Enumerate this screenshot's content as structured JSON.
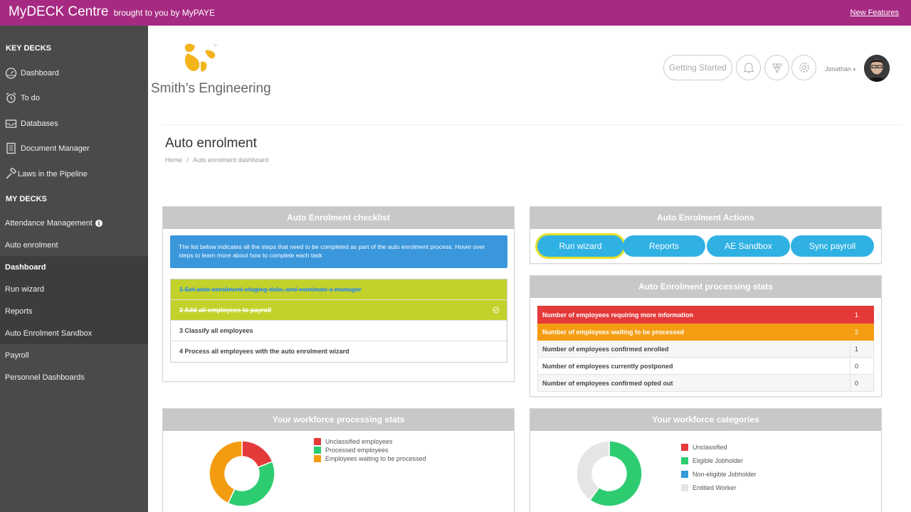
{
  "topbar": {
    "brand": "MyDECK Centre",
    "brand_sub": "brought to you by MyPAYE",
    "new_features": "New Features"
  },
  "sidebar": {
    "key_decks_title": "KEY DECKS",
    "key_items": [
      {
        "label": "Dashboard",
        "icon": "speedometer-icon"
      },
      {
        "label": "To do",
        "icon": "alarm-clock-icon"
      },
      {
        "label": "Databases",
        "icon": "inbox-tray-icon"
      },
      {
        "label": "Document Manager",
        "icon": "document-icon"
      },
      {
        "label": "Laws in the Pipeline",
        "icon": "gavel-icon"
      }
    ],
    "my_decks_title": "MY DECKS",
    "my_items": [
      {
        "label": "Attendance Management"
      },
      {
        "label": "Auto enrolment"
      },
      {
        "label": "Dashboard"
      },
      {
        "label": "Run wizard"
      },
      {
        "label": "Reports"
      },
      {
        "label": "Auto Enrolment Sandbox"
      },
      {
        "label": "Payroll"
      },
      {
        "label": "Personnel Dashboards"
      }
    ],
    "info_glyph": "i"
  },
  "header": {
    "company_name": "Smith’s Engineering",
    "getting_started": "Getting Started",
    "icons": [
      "bell-icon",
      "award-icon",
      "settings-gear-icon"
    ],
    "user_name": "Jonathan",
    "user_caret": "▾"
  },
  "page": {
    "title": "Auto enrolment",
    "breadcrumb_home": "Home",
    "breadcrumb_sep": "/",
    "breadcrumb_current": "Auto enrolment dashboard"
  },
  "checklist": {
    "title": "Auto Enrolment checklist",
    "info": "The list below indicates all the steps that need to be completed as part of the auto enrolment process. Hover over steps to learn more about how to complete each task",
    "steps": [
      {
        "label": "1 Set auto enrolment staging date, and nominate a manager",
        "status": "done"
      },
      {
        "label": "2 Add all employees to payroll",
        "status": "done"
      },
      {
        "label": "3 Classify all employees",
        "status": "pending"
      },
      {
        "label": "4 Process all employees with the auto enrolment wizard",
        "status": "pending"
      }
    ]
  },
  "actions": {
    "title": "Auto Enrolment Actions",
    "buttons": [
      "Run wizard",
      "Reports",
      "AE Sandbox",
      "Sync payroll"
    ]
  },
  "processing_stats": {
    "title": "Auto Enrolment processing stats",
    "rows": [
      {
        "label": "Number of employees requiring more information",
        "value": "1",
        "color": "#e43a3a"
      },
      {
        "label": "Number of employees waiting to be processed",
        "value": "2",
        "color": "#f59d12"
      },
      {
        "label": "Number of employees confirmed enrolled",
        "value": "1"
      },
      {
        "label": "Number of employees currently postponed",
        "value": "0"
      },
      {
        "label": "Number of employees confirmed opted out",
        "value": "0"
      }
    ]
  },
  "workforce_stats": {
    "title": "Your workforce processing stats",
    "legend": [
      {
        "label": "Unclassified employees",
        "color": "#e43a3a"
      },
      {
        "label": "Processed employees",
        "color": "#2ecc71"
      },
      {
        "label": "Employees waiting to be processed",
        "color": "#f39c12"
      }
    ],
    "donut_fractions": [
      0.19,
      0.38,
      0.43
    ]
  },
  "workforce_categories": {
    "title": "Your workforce categories",
    "legend": [
      {
        "label": "Unclassified",
        "color": "#e43a3a"
      },
      {
        "label": "Eligible Jobholder",
        "color": "#2ecc71"
      },
      {
        "label": "Non-eligible Jobholder",
        "color": "#3498db"
      },
      {
        "label": "Entitled Worker",
        "color": "#e5e5e5"
      }
    ],
    "donut_fractions": [
      0,
      0.6,
      0,
      0.4
    ]
  }
}
